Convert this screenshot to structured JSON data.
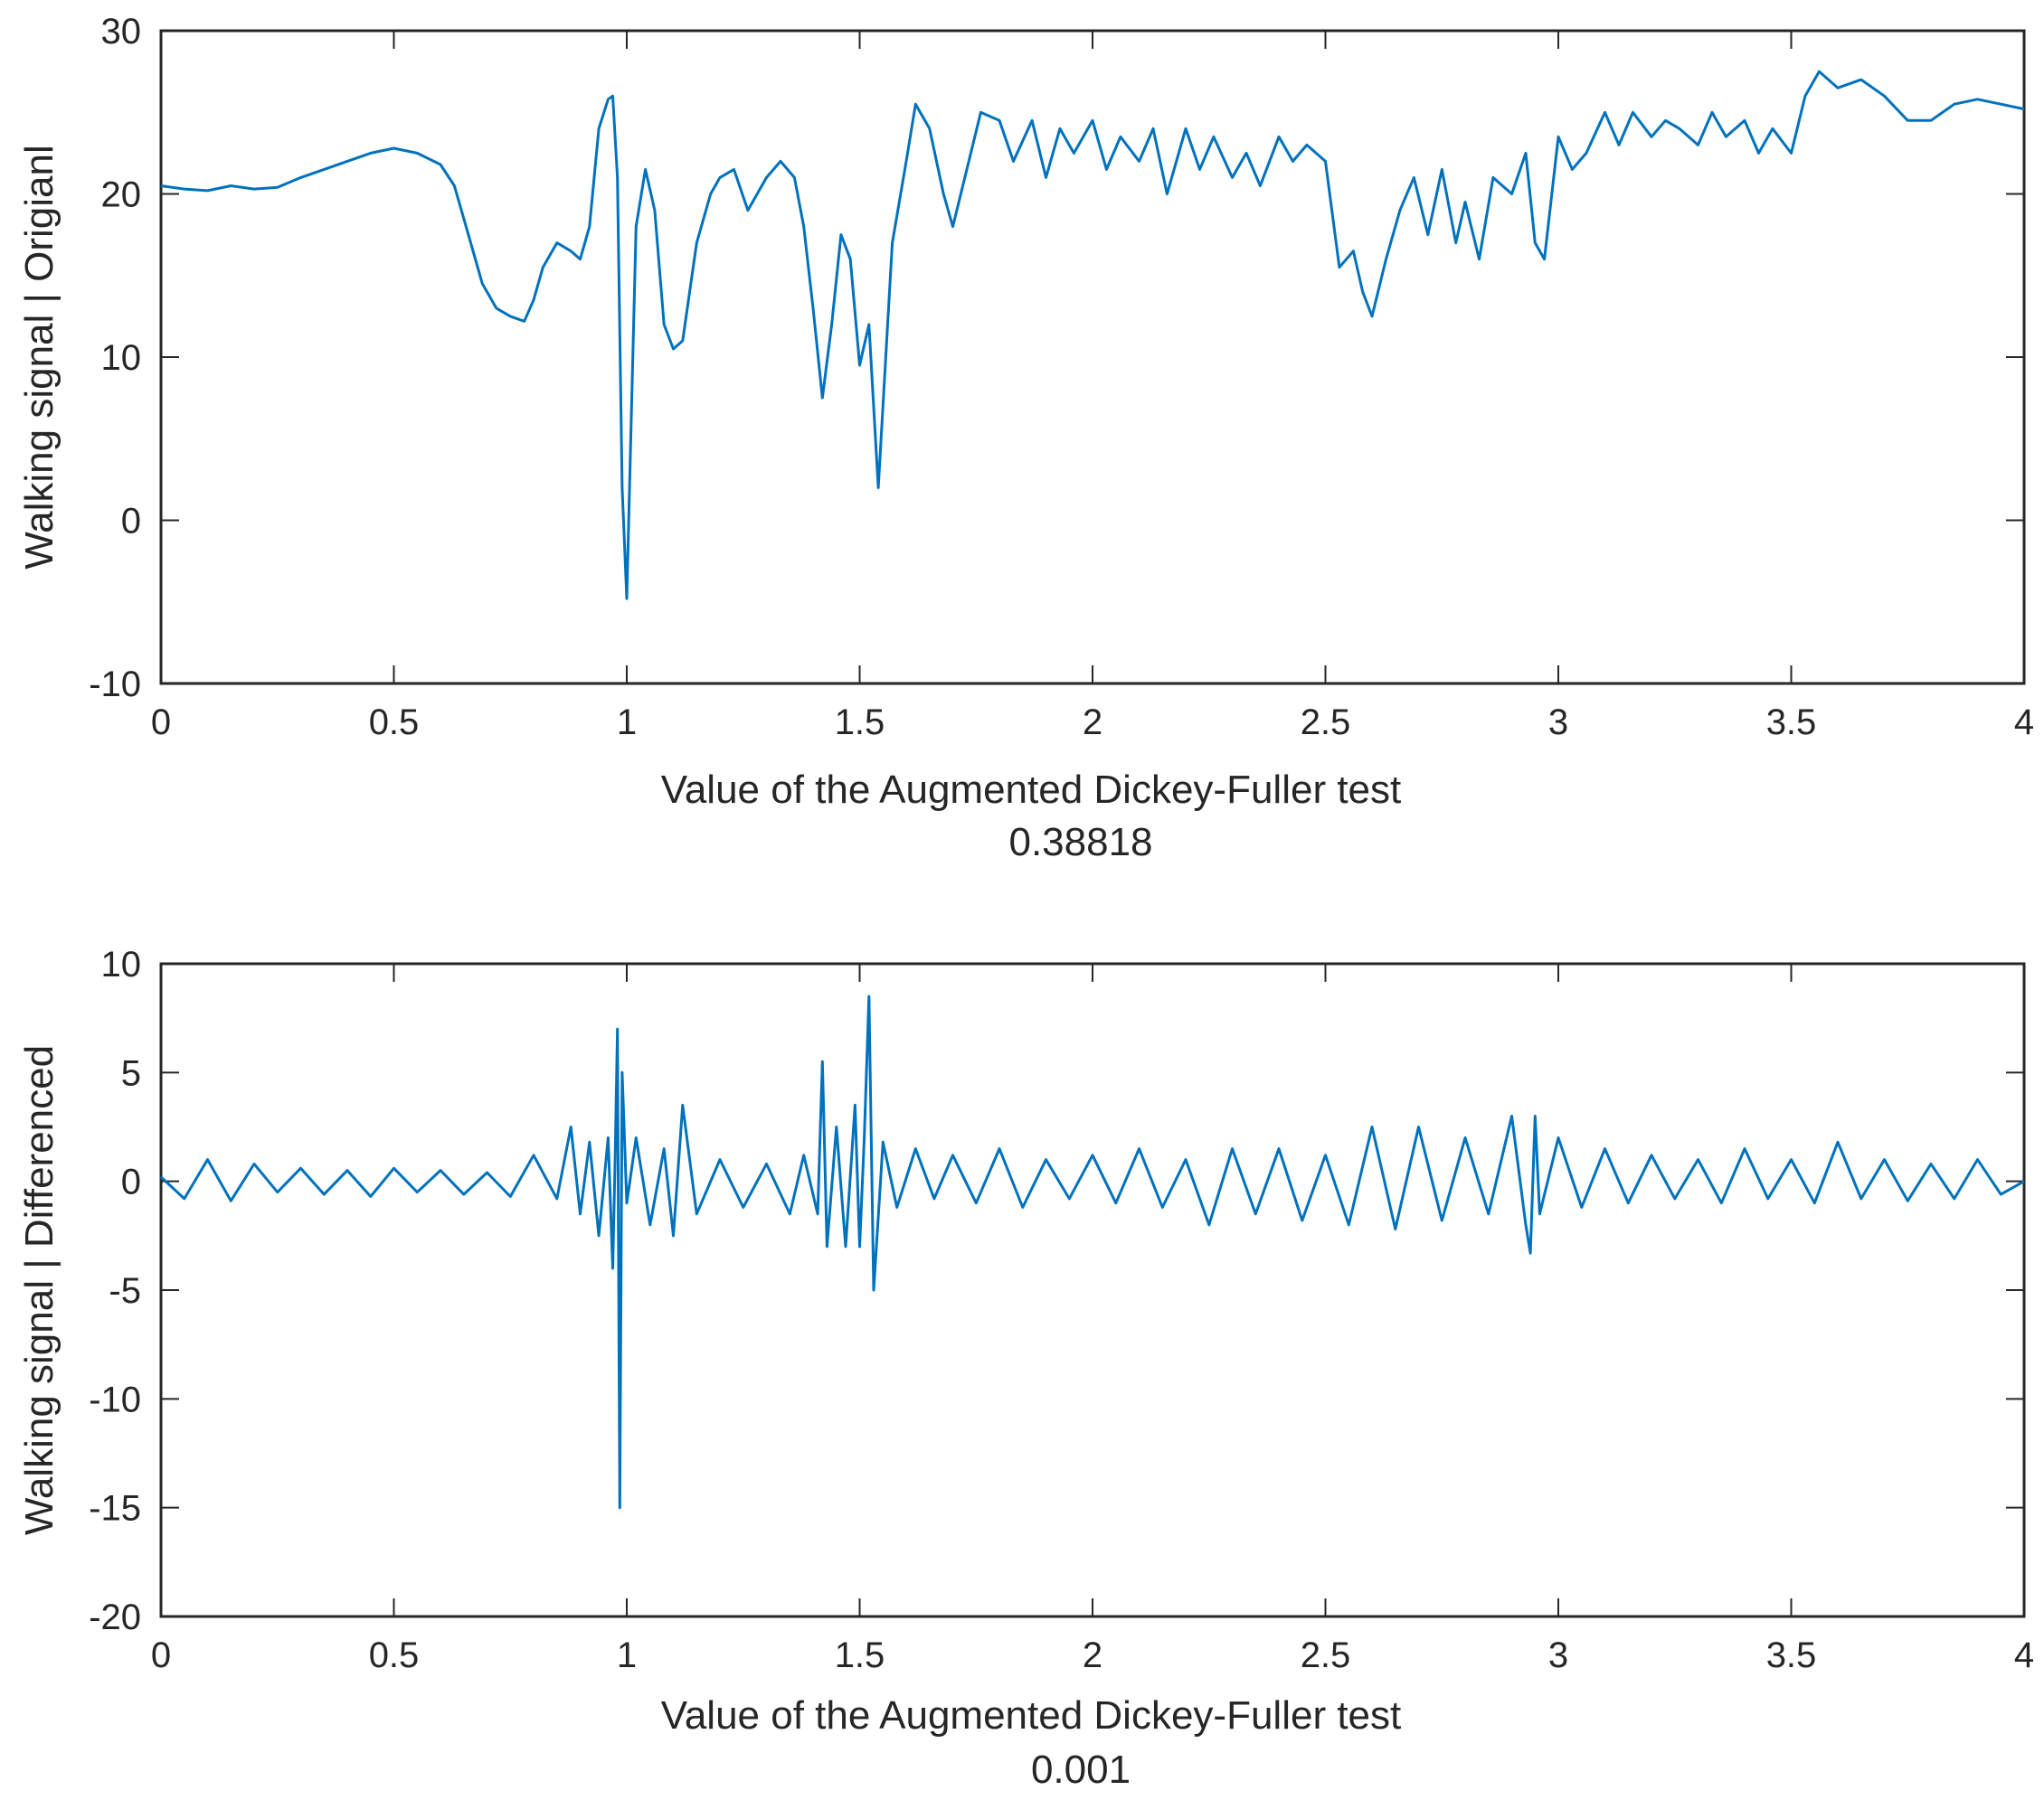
{
  "chart_data": [
    {
      "type": "line",
      "title": "",
      "ylabel": "Walking signal | Origianl",
      "xlabel": "Value of the Augmented Dickey-Fuller test",
      "stat_value": "0.38818",
      "xlim": [
        0,
        4
      ],
      "ylim": [
        -10,
        30
      ],
      "xticks": [
        0,
        0.5,
        1,
        1.5,
        2,
        2.5,
        3,
        3.5,
        4
      ],
      "xtick_labels": [
        "0",
        "0.5",
        "1",
        "1.5",
        "2",
        "2.5",
        "3",
        "3.5",
        "4"
      ],
      "yticks": [
        -10,
        0,
        10,
        20,
        30
      ],
      "ytick_labels": [
        "-10",
        "0",
        "10",
        "20",
        "30"
      ],
      "grid": false,
      "series": [
        {
          "color": "#0072BD",
          "x": [
            0,
            0.05,
            0.1,
            0.15,
            0.2,
            0.25,
            0.3,
            0.35,
            0.4,
            0.45,
            0.5,
            0.55,
            0.6,
            0.63,
            0.66,
            0.69,
            0.72,
            0.75,
            0.78,
            0.8,
            0.82,
            0.85,
            0.88,
            0.9,
            0.92,
            0.94,
            0.96,
            0.97,
            0.98,
            0.99,
            1.0,
            1.02,
            1.04,
            1.06,
            1.08,
            1.1,
            1.12,
            1.15,
            1.18,
            1.2,
            1.23,
            1.26,
            1.28,
            1.3,
            1.33,
            1.36,
            1.38,
            1.4,
            1.42,
            1.44,
            1.46,
            1.48,
            1.5,
            1.52,
            1.54,
            1.57,
            1.6,
            1.62,
            1.65,
            1.68,
            1.7,
            1.73,
            1.76,
            1.8,
            1.83,
            1.87,
            1.9,
            1.93,
            1.96,
            2.0,
            2.03,
            2.06,
            2.1,
            2.13,
            2.16,
            2.2,
            2.23,
            2.26,
            2.3,
            2.33,
            2.36,
            2.4,
            2.43,
            2.46,
            2.5,
            2.53,
            2.56,
            2.58,
            2.6,
            2.63,
            2.66,
            2.69,
            2.72,
            2.75,
            2.78,
            2.8,
            2.83,
            2.86,
            2.9,
            2.93,
            2.95,
            2.97,
            3.0,
            3.03,
            3.06,
            3.1,
            3.13,
            3.16,
            3.2,
            3.23,
            3.26,
            3.3,
            3.33,
            3.36,
            3.4,
            3.43,
            3.46,
            3.5,
            3.53,
            3.56,
            3.6,
            3.65,
            3.7,
            3.75,
            3.8,
            3.85,
            3.9,
            3.95,
            4.0
          ],
          "y": [
            20.5,
            20.3,
            20.2,
            20.5,
            20.3,
            20.4,
            21.0,
            21.5,
            22.0,
            22.5,
            22.8,
            22.5,
            21.8,
            20.5,
            17.5,
            14.5,
            13.0,
            12.5,
            12.2,
            13.5,
            15.5,
            17.0,
            16.5,
            16.0,
            18.0,
            24.0,
            25.8,
            26.0,
            21.0,
            2.0,
            -4.8,
            18.0,
            21.5,
            19.0,
            12.0,
            10.5,
            11.0,
            17.0,
            20.0,
            21.0,
            21.5,
            19.0,
            20.0,
            21.0,
            22.0,
            21.0,
            18.0,
            13.0,
            7.5,
            12.0,
            17.5,
            16.0,
            9.5,
            12.0,
            2.0,
            17.0,
            22.0,
            25.5,
            24.0,
            20.0,
            18.0,
            21.5,
            25.0,
            24.5,
            22.0,
            24.5,
            21.0,
            24.0,
            22.5,
            24.5,
            21.5,
            23.5,
            22.0,
            24.0,
            20.0,
            24.0,
            21.5,
            23.5,
            21.0,
            22.5,
            20.5,
            23.5,
            22.0,
            23.0,
            22.0,
            15.5,
            16.5,
            14.0,
            12.5,
            16.0,
            19.0,
            21.0,
            17.5,
            21.5,
            17.0,
            19.5,
            16.0,
            21.0,
            20.0,
            22.5,
            17.0,
            16.0,
            23.5,
            21.5,
            22.5,
            25.0,
            23.0,
            25.0,
            23.5,
            24.5,
            24.0,
            23.0,
            25.0,
            23.5,
            24.5,
            22.5,
            24.0,
            22.5,
            26.0,
            27.5,
            26.5,
            27.0,
            26.0,
            24.5,
            24.5,
            25.5,
            25.8,
            25.5,
            25.2
          ]
        }
      ]
    },
    {
      "type": "line",
      "title": "",
      "ylabel": "Walking signal | Differenced",
      "xlabel": "Value of the Augmented Dickey-Fuller test",
      "stat_value": "0.001",
      "xlim": [
        0,
        4
      ],
      "ylim": [
        -20,
        10
      ],
      "xticks": [
        0,
        0.5,
        1,
        1.5,
        2,
        2.5,
        3,
        3.5,
        4
      ],
      "xtick_labels": [
        "0",
        "0.5",
        "1",
        "1.5",
        "2",
        "2.5",
        "3",
        "3.5",
        "4"
      ],
      "yticks": [
        -20,
        -15,
        -10,
        -5,
        0,
        5,
        10
      ],
      "ytick_labels": [
        "-20",
        "-15",
        "-10",
        "-5",
        "0",
        "5",
        "10"
      ],
      "grid": false,
      "series": [
        {
          "color": "#0072BD",
          "x": [
            0,
            0.05,
            0.1,
            0.15,
            0.2,
            0.25,
            0.3,
            0.35,
            0.4,
            0.45,
            0.5,
            0.55,
            0.6,
            0.65,
            0.7,
            0.75,
            0.8,
            0.85,
            0.88,
            0.9,
            0.92,
            0.94,
            0.96,
            0.97,
            0.975,
            0.98,
            0.985,
            0.99,
            1.0,
            1.02,
            1.05,
            1.08,
            1.1,
            1.12,
            1.15,
            1.2,
            1.25,
            1.3,
            1.35,
            1.38,
            1.41,
            1.42,
            1.43,
            1.45,
            1.47,
            1.49,
            1.5,
            1.51,
            1.52,
            1.53,
            1.55,
            1.58,
            1.62,
            1.66,
            1.7,
            1.75,
            1.8,
            1.85,
            1.9,
            1.95,
            2.0,
            2.05,
            2.1,
            2.15,
            2.2,
            2.25,
            2.3,
            2.35,
            2.4,
            2.45,
            2.5,
            2.55,
            2.6,
            2.65,
            2.7,
            2.75,
            2.8,
            2.85,
            2.9,
            2.93,
            2.94,
            2.95,
            2.96,
            3.0,
            3.05,
            3.1,
            3.15,
            3.2,
            3.25,
            3.3,
            3.35,
            3.4,
            3.45,
            3.5,
            3.55,
            3.6,
            3.65,
            3.7,
            3.75,
            3.8,
            3.85,
            3.9,
            3.95,
            4.0
          ],
          "y": [
            0.2,
            -0.8,
            1.0,
            -0.9,
            0.8,
            -0.5,
            0.6,
            -0.6,
            0.5,
            -0.7,
            0.6,
            -0.5,
            0.5,
            -0.6,
            0.4,
            -0.7,
            1.2,
            -0.8,
            2.5,
            -1.5,
            1.8,
            -2.5,
            2.0,
            -4.0,
            1.0,
            7.0,
            -15.0,
            5.0,
            -1.0,
            2.0,
            -2.0,
            1.5,
            -2.5,
            3.5,
            -1.5,
            1.0,
            -1.2,
            0.8,
            -1.5,
            1.2,
            -1.5,
            5.5,
            -3.0,
            2.5,
            -3.0,
            3.5,
            -3.0,
            2.0,
            8.5,
            -5.0,
            1.8,
            -1.2,
            1.5,
            -0.8,
            1.2,
            -1.0,
            1.5,
            -1.2,
            1.0,
            -0.8,
            1.2,
            -1.0,
            1.5,
            -1.2,
            1.0,
            -2.0,
            1.5,
            -1.5,
            1.5,
            -1.8,
            1.2,
            -2.0,
            2.5,
            -2.2,
            2.5,
            -1.8,
            2.0,
            -1.5,
            3.0,
            -2.0,
            -3.3,
            3.0,
            -1.5,
            2.0,
            -1.2,
            1.5,
            -1.0,
            1.2,
            -0.8,
            1.0,
            -1.0,
            1.5,
            -0.8,
            1.0,
            -1.0,
            1.8,
            -0.8,
            1.0,
            -0.9,
            0.8,
            -0.8,
            1.0,
            -0.6,
            0.0
          ]
        }
      ]
    }
  ]
}
